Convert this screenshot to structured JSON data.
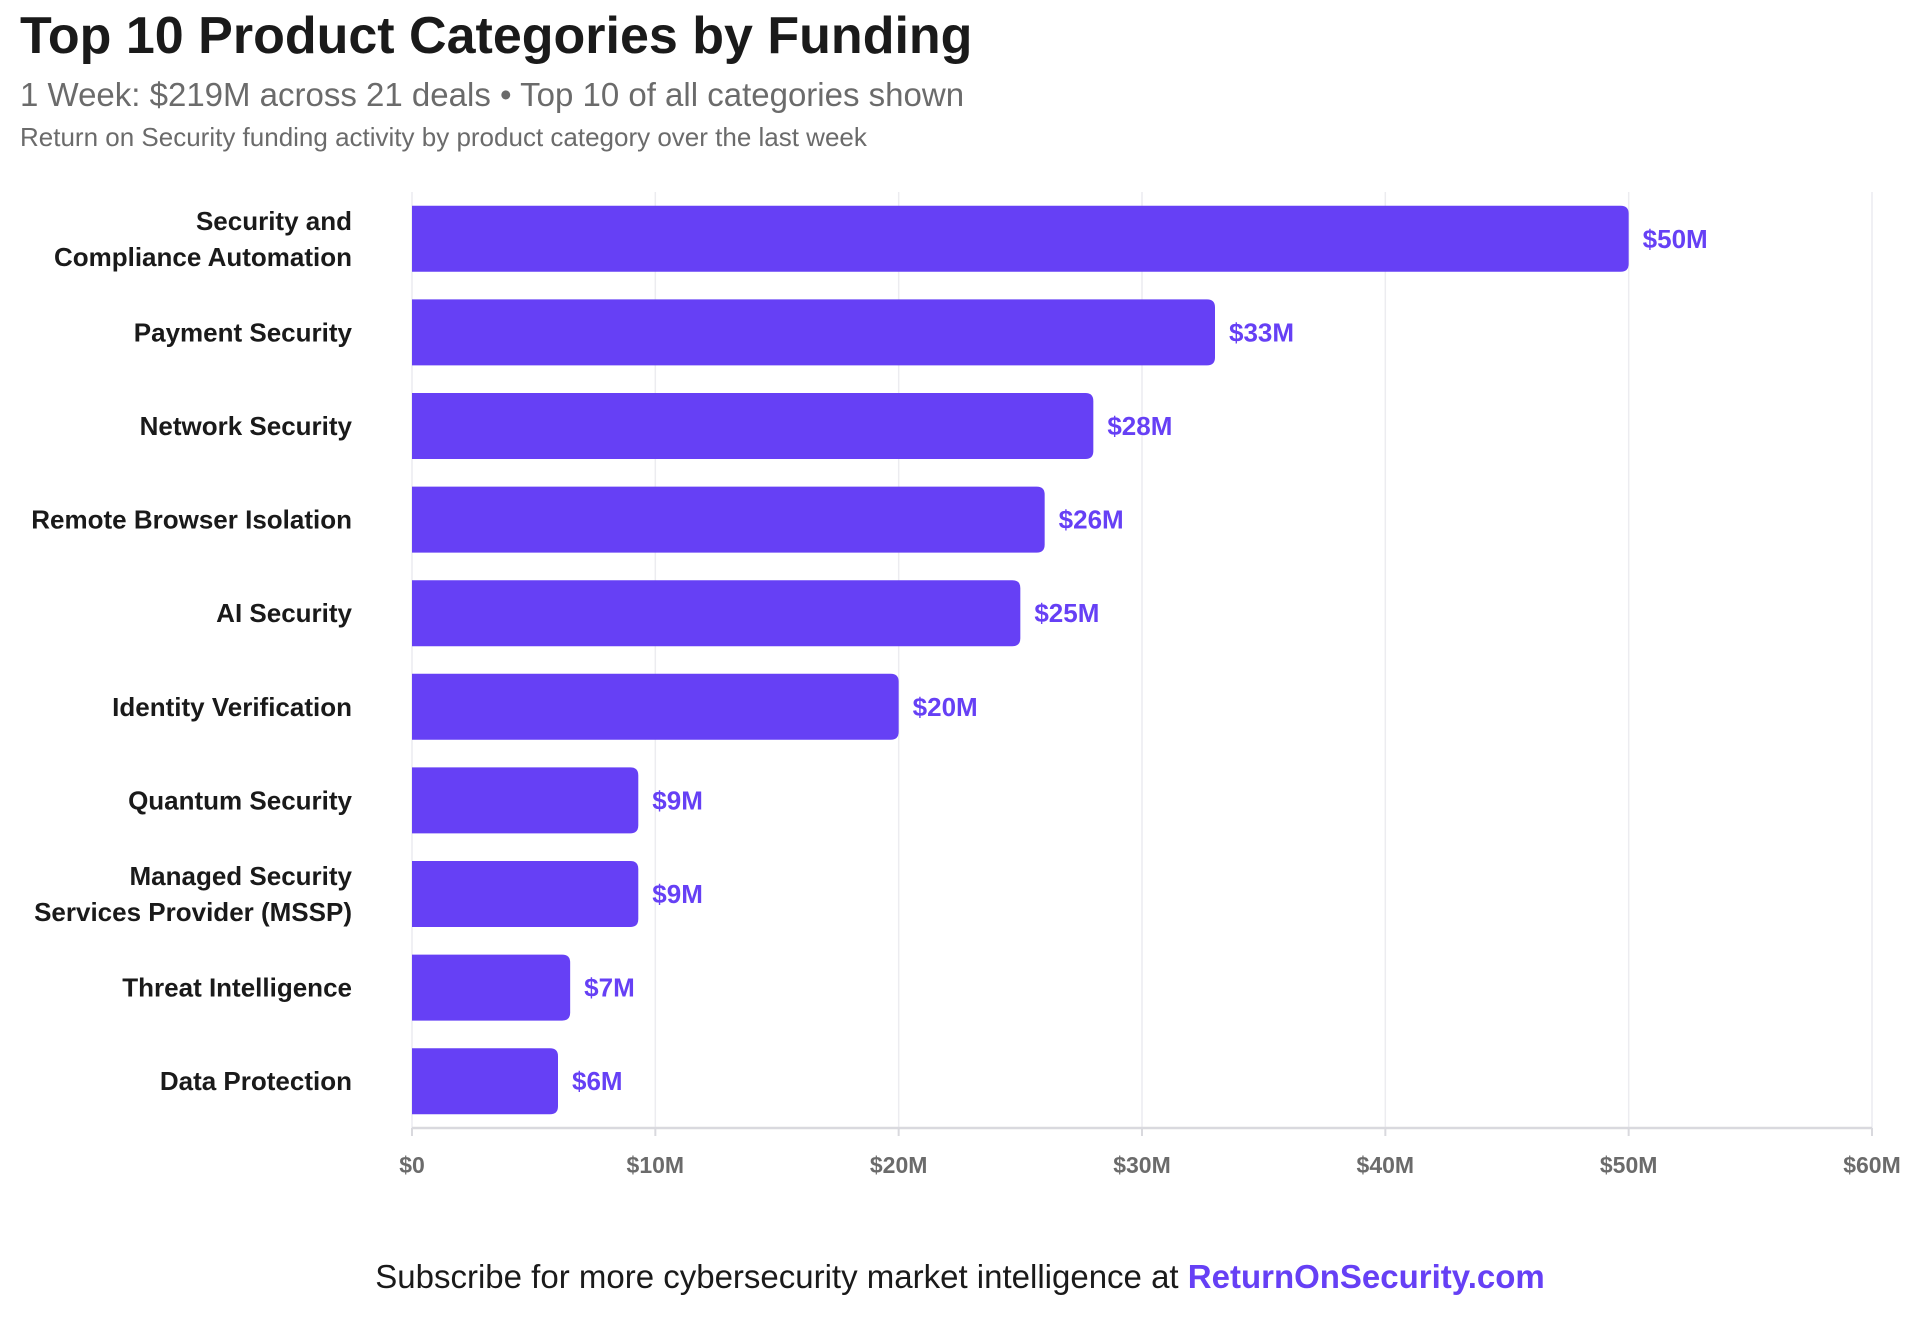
{
  "header": {
    "title": "Top 10 Product Categories by Funding",
    "subtitle": "1 Week: $219M across 21 deals • Top 10 of all categories shown",
    "description": "Return on Security funding activity by product category over the last week"
  },
  "footer": {
    "text": "Subscribe for more cybersecurity market intelligence at",
    "link_label": "ReturnOnSecurity.com"
  },
  "colors": {
    "bar": "#6640f5",
    "value_label": "#6640f5",
    "grid": "#ececf0",
    "axis": "#d9d9de"
  },
  "chart_data": {
    "type": "bar",
    "orientation": "horizontal",
    "categories": [
      [
        "Security and",
        "Compliance Automation"
      ],
      [
        "Payment Security"
      ],
      [
        "Network Security"
      ],
      [
        "Remote Browser Isolation"
      ],
      [
        "AI Security"
      ],
      [
        "Identity Verification"
      ],
      [
        "Quantum Security"
      ],
      [
        "Managed Security",
        "Services Provider (MSSP)"
      ],
      [
        "Threat Intelligence"
      ],
      [
        "Data Protection"
      ]
    ],
    "values": [
      50,
      33,
      28,
      26,
      25,
      20,
      9.3,
      9.3,
      6.5,
      6
    ],
    "value_labels": [
      "$50M",
      "$33M",
      "$28M",
      "$26M",
      "$25M",
      "$20M",
      "$9M",
      "$9M",
      "$7M",
      "$6M"
    ],
    "x_ticks": [
      0,
      10,
      20,
      30,
      40,
      50,
      60
    ],
    "x_tick_labels": [
      "$0",
      "$10M",
      "$20M",
      "$30M",
      "$40M",
      "$50M",
      "$60M"
    ],
    "xlim": [
      0,
      60
    ],
    "grid": true,
    "legend": "none"
  }
}
